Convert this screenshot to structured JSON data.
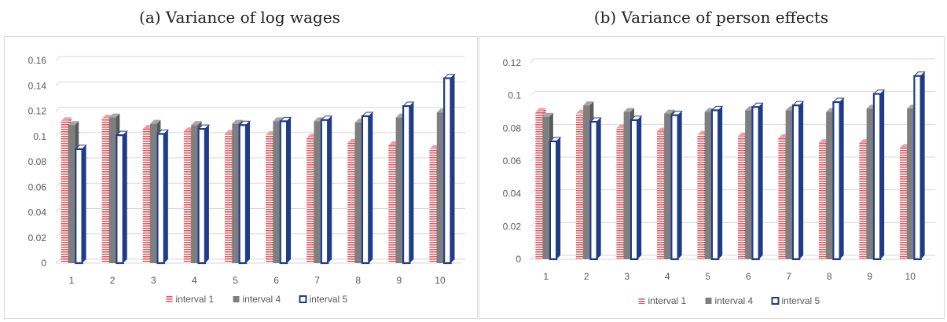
{
  "panels": [
    {
      "title": "(a) Variance of log wages"
    },
    {
      "title": "(b) Variance of person effects"
    }
  ],
  "colors": {
    "interval1": "#e05a5f",
    "interval4": "#7f7f7f",
    "interval5": "#1f3c88",
    "grid": "#d9d9d9",
    "axis_text": "#595959"
  },
  "chart_data": [
    {
      "type": "bar",
      "categories": [
        "1",
        "2",
        "3",
        "4",
        "5",
        "6",
        "7",
        "8",
        "9",
        "10"
      ],
      "series": [
        {
          "name": "interval 1",
          "values": [
            0.112,
            0.114,
            0.106,
            0.104,
            0.102,
            0.101,
            0.099,
            0.095,
            0.093,
            0.09
          ]
        },
        {
          "name": "interval 4",
          "values": [
            0.109,
            0.115,
            0.11,
            0.109,
            0.11,
            0.112,
            0.112,
            0.111,
            0.115,
            0.119
          ]
        },
        {
          "name": "interval 5",
          "values": [
            0.09,
            0.101,
            0.102,
            0.106,
            0.109,
            0.112,
            0.113,
            0.116,
            0.124,
            0.146
          ]
        }
      ],
      "ylim": [
        0,
        0.16
      ],
      "yticks": [
        "0",
        "0.02",
        "0.04",
        "0.06",
        "0.08",
        "0.1",
        "0.12",
        "0.14",
        "0.16"
      ],
      "legend": "bottom-center",
      "grid": true
    },
    {
      "type": "bar",
      "categories": [
        "1",
        "2",
        "3",
        "4",
        "5",
        "6",
        "7",
        "8",
        "9",
        "10"
      ],
      "series": [
        {
          "name": "interval 1",
          "values": [
            0.09,
            0.089,
            0.08,
            0.078,
            0.076,
            0.075,
            0.074,
            0.071,
            0.071,
            0.068
          ]
        },
        {
          "name": "interval 4",
          "values": [
            0.087,
            0.094,
            0.09,
            0.089,
            0.09,
            0.091,
            0.091,
            0.09,
            0.092,
            0.092
          ]
        },
        {
          "name": "interval 5",
          "values": [
            0.072,
            0.084,
            0.085,
            0.088,
            0.091,
            0.093,
            0.094,
            0.096,
            0.101,
            0.112
          ]
        }
      ],
      "ylim": [
        0,
        0.12
      ],
      "yticks": [
        "0",
        "0.02",
        "0.04",
        "0.06",
        "0.08",
        "0.1",
        "0.12"
      ],
      "legend": "bottom-center",
      "grid": true
    }
  ]
}
